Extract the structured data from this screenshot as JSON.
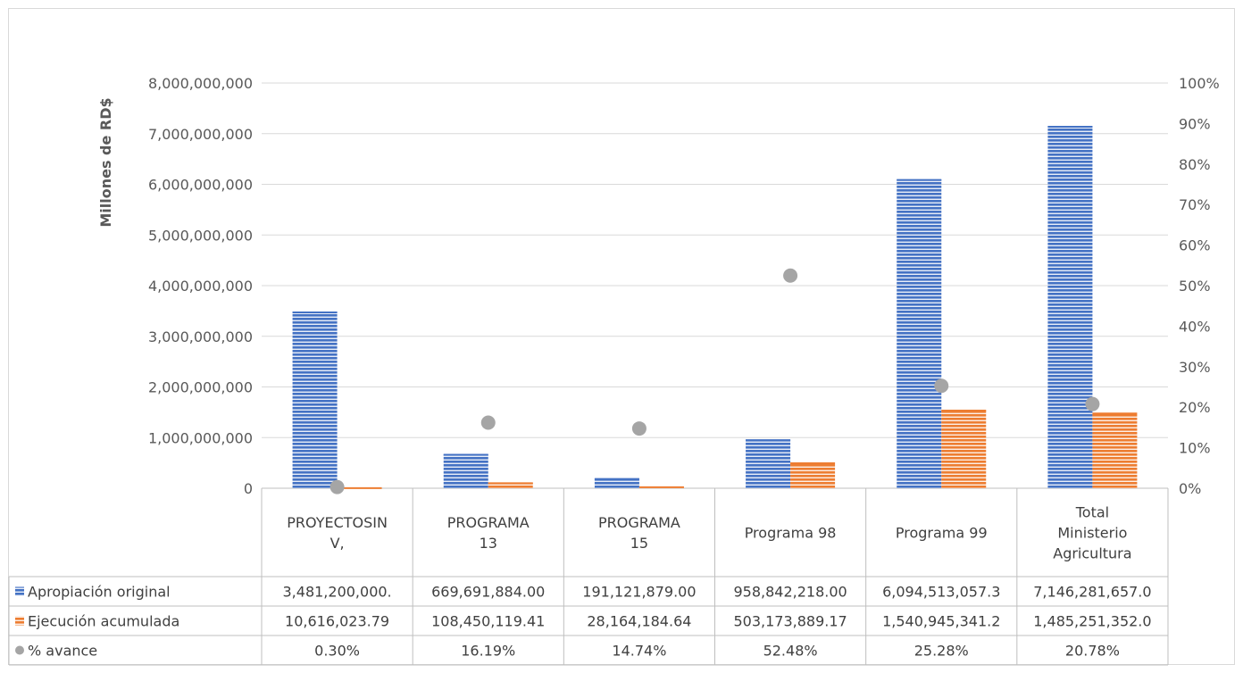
{
  "chart_data": {
    "type": "bar",
    "ylabel": "Millones de RD$",
    "ylim": [
      0,
      8000000000
    ],
    "y2lim": [
      0,
      1
    ],
    "y_ticks": [
      "0",
      "1,000,000,000",
      "2,000,000,000",
      "3,000,000,000",
      "4,000,000,000",
      "5,000,000,000",
      "6,000,000,000",
      "7,000,000,000",
      "8,000,000,000"
    ],
    "y2_ticks": [
      "0%",
      "10%",
      "20%",
      "30%",
      "40%",
      "50%",
      "60%",
      "70%",
      "80%",
      "90%",
      "100%"
    ],
    "categories": [
      [
        "PROYECTOSIN",
        "V,"
      ],
      [
        "PROGRAMA",
        "13"
      ],
      [
        "PROGRAMA",
        "15"
      ],
      [
        "Programa 98"
      ],
      [
        "Programa 99"
      ],
      [
        "Total",
        "Ministerio",
        "Agricultura"
      ]
    ],
    "series": [
      {
        "name": "Apropiación original",
        "type": "bar",
        "axis": "left",
        "color": "#4472c4",
        "values": [
          3481200000,
          669691884,
          191121879,
          958842218,
          6094513057.3,
          7146281657.0
        ],
        "labels": [
          "3,481,200,000.",
          "669,691,884.00",
          "191,121,879.00",
          "958,842,218.00",
          "6,094,513,057.3",
          "7,146,281,657.0"
        ]
      },
      {
        "name": "Ejecución acumulada",
        "type": "bar",
        "axis": "left",
        "color": "#ed7d31",
        "values": [
          10616023.79,
          108450119.41,
          28164184.64,
          503173889.17,
          1540945341.2,
          1485251352.0
        ],
        "labels": [
          "10,616,023.79",
          "108,450,119.41",
          "28,164,184.64",
          "503,173,889.17",
          "1,540,945,341.2",
          "1,485,251,352.0"
        ]
      },
      {
        "name": "% avance",
        "type": "scatter",
        "axis": "right",
        "color": "#a5a5a5",
        "values": [
          0.003,
          0.1619,
          0.1474,
          0.5248,
          0.2528,
          0.2078
        ],
        "labels": [
          "0.30%",
          "16.19%",
          "14.74%",
          "52.48%",
          "25.28%",
          "20.78%"
        ]
      }
    ],
    "grid": true,
    "legend": "data-table"
  }
}
